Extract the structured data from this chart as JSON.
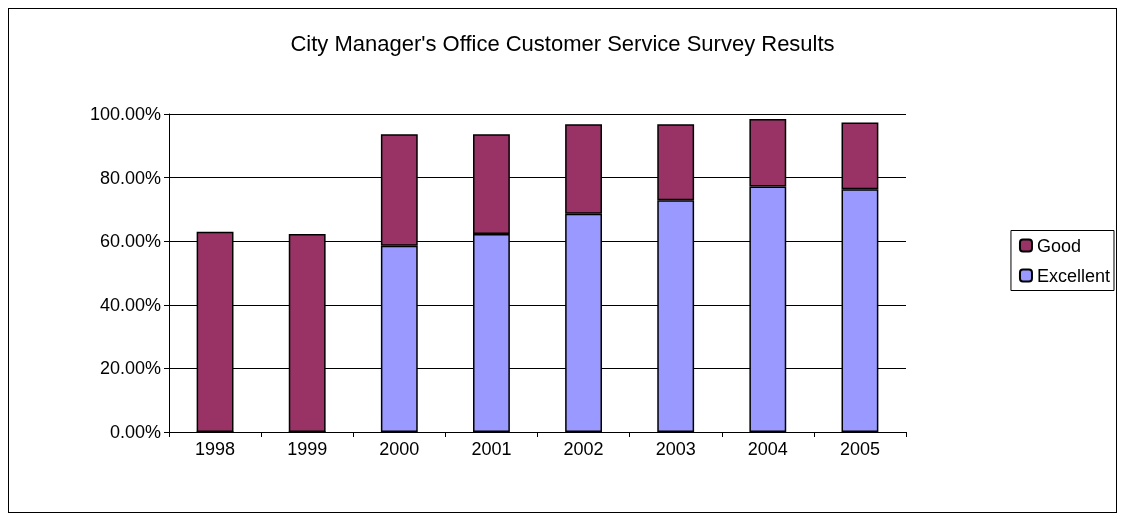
{
  "chart_data": {
    "type": "bar",
    "title": "City Manager's Office Customer Service Survey Results",
    "categories": [
      "1998",
      "1999",
      "2000",
      "2001",
      "2002",
      "2003",
      "2004",
      "2005"
    ],
    "stacked": true,
    "series": [
      {
        "name": "Excellent",
        "color": "#9999ff",
        "values": [
          0,
          0,
          58.6,
          62.3,
          68.6,
          72.9,
          77.2,
          76.3
        ]
      },
      {
        "name": "Good",
        "color": "#993366",
        "values": [
          63.0,
          62.3,
          35.0,
          31.3,
          28.2,
          23.9,
          21.2,
          21.0
        ]
      }
    ],
    "ylim": [
      0,
      100
    ],
    "yticks": [
      {
        "value": 0,
        "label": "0.00%"
      },
      {
        "value": 20,
        "label": "20.00%"
      },
      {
        "value": 40,
        "label": "40.00%"
      },
      {
        "value": 60,
        "label": "60.00%"
      },
      {
        "value": 80,
        "label": "80.00%"
      },
      {
        "value": 100,
        "label": "100.00%"
      }
    ],
    "grid": "y",
    "legend": "right"
  }
}
